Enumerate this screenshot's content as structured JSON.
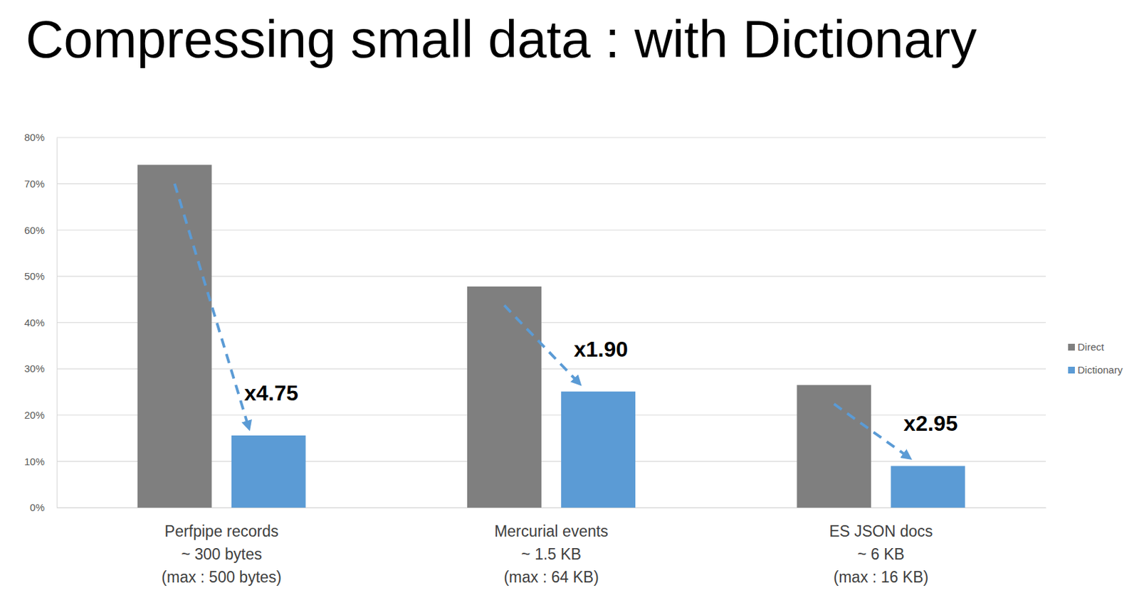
{
  "chart_data": {
    "type": "bar",
    "title": "Compressing small data : with Dictionary",
    "categories": [
      "Perfpipe records\n~ 300 bytes\n(max : 500 bytes)",
      "Mercurial events\n~ 1.5 KB\n(max : 64 KB)",
      "ES JSON docs\n~ 6 KB\n(max : 16 KB)"
    ],
    "series": [
      {
        "name": "Direct",
        "color": "#7f7f7f",
        "values": [
          74.1,
          47.8,
          26.5
        ]
      },
      {
        "name": "Dictionary",
        "color": "#5b9bd5",
        "values": [
          15.6,
          25.1,
          9.0
        ]
      }
    ],
    "annotations": [
      "x4.75",
      "x1.90",
      "x2.95"
    ],
    "ylim": [
      0,
      80
    ],
    "yticks": [
      {
        "value": 0,
        "label": "0%"
      },
      {
        "value": 10,
        "label": "10%"
      },
      {
        "value": 20,
        "label": "20%"
      },
      {
        "value": 30,
        "label": "30%"
      },
      {
        "value": 40,
        "label": "40%"
      },
      {
        "value": 50,
        "label": "50%"
      },
      {
        "value": 60,
        "label": "60%"
      },
      {
        "value": 70,
        "label": "70%"
      },
      {
        "value": 80,
        "label": "80%"
      }
    ],
    "grid": true,
    "legend": "right"
  }
}
